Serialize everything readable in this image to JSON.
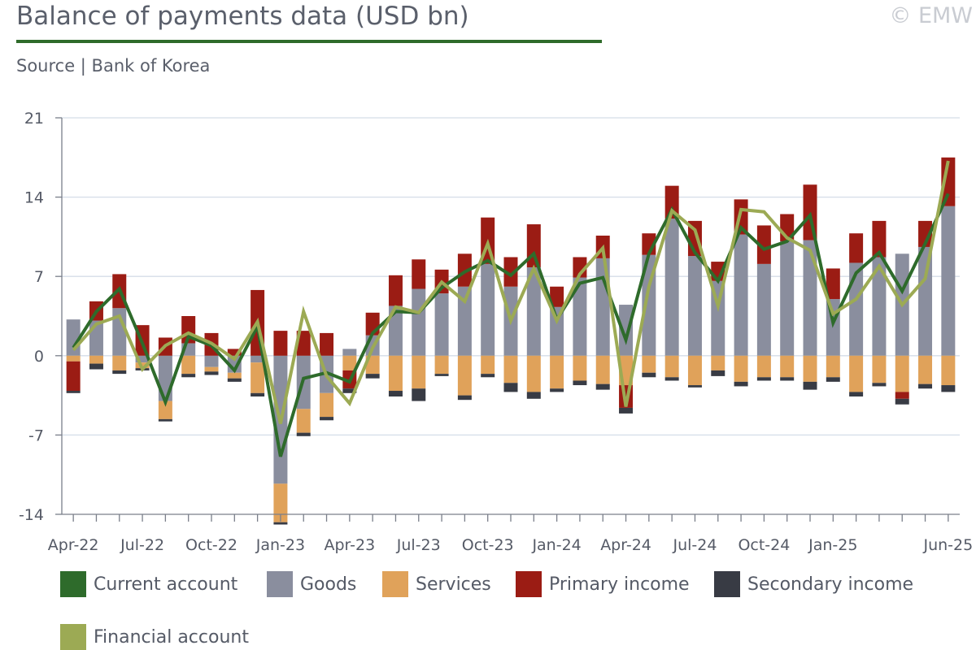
{
  "header": {
    "title": "Balance of payments data (USD bn)",
    "source": "Source | Bank of Korea",
    "copyright": "© EMW"
  },
  "colors": {
    "current_account": "#2e6b2b",
    "goods": "#8a8e9e",
    "services": "#e0a25a",
    "primary_income": "#9b1c14",
    "secondary_income": "#383b44",
    "financial_account": "#9caa54",
    "grid": "#d5dde8",
    "axis": "#7a7f8a"
  },
  "chart_data": {
    "type": "bar",
    "stacked": true,
    "ylim": [
      -14,
      21
    ],
    "yticks": [
      21,
      14,
      7,
      0,
      -7,
      -14
    ],
    "xtick_labels": [
      {
        "index": 0,
        "label": "Apr-22"
      },
      {
        "index": 3,
        "label": "Jul-22"
      },
      {
        "index": 6,
        "label": "Oct-22"
      },
      {
        "index": 9,
        "label": "Jan-23"
      },
      {
        "index": 12,
        "label": "Apr-23"
      },
      {
        "index": 15,
        "label": "Jul-23"
      },
      {
        "index": 18,
        "label": "Oct-23"
      },
      {
        "index": 21,
        "label": "Jan-24"
      },
      {
        "index": 24,
        "label": "Apr-24"
      },
      {
        "index": 27,
        "label": "Jul-24"
      },
      {
        "index": 30,
        "label": "Oct-24"
      },
      {
        "index": 33,
        "label": "Jan-25"
      },
      {
        "index": 38,
        "label": "Jun-25"
      }
    ],
    "categories": [
      "Apr-22",
      "May-22",
      "Jun-22",
      "Jul-22",
      "Aug-22",
      "Sep-22",
      "Oct-22",
      "Nov-22",
      "Dec-22",
      "Jan-23",
      "Feb-23",
      "Mar-23",
      "Apr-23",
      "May-23",
      "Jun-23",
      "Jul-23",
      "Aug-23",
      "Sep-23",
      "Oct-23",
      "Nov-23",
      "Dec-23",
      "Jan-24",
      "Feb-24",
      "Mar-24",
      "Apr-24",
      "May-24",
      "Jun-24",
      "Jul-24",
      "Aug-24",
      "Sep-24",
      "Oct-24",
      "Nov-24",
      "Dec-24",
      "Jan-25",
      "Feb-25",
      "Mar-25",
      "Apr-25",
      "May-25",
      "Jun-25"
    ],
    "legend": [
      {
        "key": "current_account",
        "label": "Current account"
      },
      {
        "key": "goods",
        "label": "Goods"
      },
      {
        "key": "services",
        "label": "Services"
      },
      {
        "key": "primary_income",
        "label": "Primary income"
      },
      {
        "key": "secondary_income",
        "label": "Secondary income"
      },
      {
        "key": "financial_account",
        "label": "Financial account"
      }
    ],
    "series": [
      {
        "key": "goods",
        "kind": "bar",
        "values": [
          3.2,
          3.1,
          4.2,
          -0.6,
          -4.0,
          1.1,
          -1.0,
          -1.5,
          -0.6,
          -11.3,
          -4.7,
          -3.3,
          0.6,
          1.8,
          4.4,
          5.9,
          5.5,
          6.1,
          8.1,
          6.1,
          7.8,
          4.3,
          6.9,
          8.6,
          4.5,
          8.9,
          12.1,
          8.8,
          6.6,
          10.7,
          8.1,
          10.1,
          10.2,
          5.0,
          8.2,
          8.7,
          9.0,
          9.6,
          13.2
        ]
      },
      {
        "key": "services",
        "kind": "bar",
        "values": [
          -0.5,
          -0.7,
          -1.3,
          -0.5,
          -1.6,
          -1.6,
          -0.4,
          -0.5,
          -2.7,
          -3.4,
          -2.1,
          -2.1,
          -1.3,
          -1.6,
          -3.1,
          -2.9,
          -1.6,
          -3.5,
          -1.6,
          -2.4,
          -3.2,
          -2.9,
          -2.2,
          -2.5,
          -2.6,
          -1.5,
          -1.9,
          -2.6,
          -1.3,
          -2.3,
          -1.9,
          -1.9,
          -2.3,
          -1.9,
          -3.2,
          -2.4,
          -3.2,
          -2.5,
          -2.6
        ]
      },
      {
        "key": "primary_income",
        "kind": "bar",
        "values": [
          -2.6,
          1.7,
          3.0,
          2.7,
          1.6,
          2.4,
          2.0,
          0.6,
          5.8,
          2.2,
          2.2,
          2.0,
          -1.6,
          2.0,
          2.7,
          2.6,
          2.1,
          2.9,
          4.1,
          2.6,
          3.8,
          1.8,
          1.8,
          2.0,
          -2.0,
          1.9,
          2.9,
          3.1,
          1.7,
          3.1,
          3.4,
          2.4,
          4.9,
          2.7,
          2.6,
          3.2,
          -0.6,
          2.3,
          4.3
        ]
      },
      {
        "key": "secondary_income",
        "kind": "bar",
        "values": [
          -0.2,
          -0.5,
          -0.3,
          -0.2,
          -0.2,
          -0.3,
          -0.3,
          -0.3,
          -0.3,
          -0.2,
          -0.3,
          -0.3,
          -0.4,
          -0.4,
          -0.5,
          -1.1,
          -0.2,
          -0.4,
          -0.3,
          -0.8,
          -0.6,
          -0.3,
          -0.4,
          -0.5,
          -0.5,
          -0.4,
          -0.3,
          -0.2,
          -0.5,
          -0.4,
          -0.3,
          -0.3,
          -0.7,
          -0.4,
          -0.4,
          -0.3,
          -0.5,
          -0.4,
          -0.6
        ]
      },
      {
        "key": "current_account",
        "kind": "line",
        "values": [
          0.7,
          3.9,
          5.9,
          1.1,
          -4.1,
          1.7,
          0.9,
          -1.3,
          2.6,
          -8.9,
          -2.0,
          -1.5,
          -2.3,
          2.0,
          3.9,
          3.8,
          6.0,
          7.4,
          8.4,
          7.1,
          9.0,
          3.2,
          6.4,
          6.9,
          1.4,
          9.0,
          12.9,
          9.1,
          6.6,
          11.3,
          9.4,
          10.1,
          12.4,
          2.9,
          7.3,
          9.1,
          5.7,
          9.9,
          14.3
        ]
      },
      {
        "key": "financial_account",
        "kind": "line",
        "values": [
          0.5,
          2.8,
          3.5,
          -1.2,
          0.9,
          2.0,
          1.1,
          -0.3,
          3.0,
          -6.0,
          3.9,
          -1.8,
          -4.2,
          0.7,
          4.3,
          3.8,
          6.5,
          4.8,
          9.9,
          3.1,
          7.7,
          3.1,
          7.2,
          9.5,
          -4.5,
          6.1,
          12.8,
          11.1,
          4.4,
          12.9,
          12.7,
          10.4,
          9.3,
          3.7,
          5.0,
          7.9,
          4.5,
          6.8,
          17.2
        ]
      }
    ]
  }
}
